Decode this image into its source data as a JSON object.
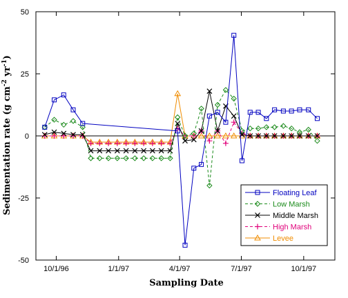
{
  "chart_data": {
    "type": "line",
    "xlabel": "Sampling Date",
    "ylabel": "Sedimentation rate (g cm",
    "ylabel_sup1": "-2",
    "ylabel_mid": " yr",
    "ylabel_sup2": "-1",
    "ylabel_end": ")",
    "ylim": [
      -50,
      50
    ],
    "yticks": [
      50,
      25,
      0,
      -25,
      -50
    ],
    "xlim": [
      "1996-09-01",
      "1997-11-16"
    ],
    "xticks": [
      {
        "date": "1996-10-01",
        "label": "10/1/96"
      },
      {
        "date": "1997-01-01",
        "label": "1/1/97"
      },
      {
        "date": "1997-04-01",
        "label": "4/1/97"
      },
      {
        "date": "1997-07-01",
        "label": "7/1/97"
      },
      {
        "date": "1997-10-01",
        "label": "10/1/97"
      }
    ],
    "grid": false,
    "zero_line": true,
    "legend_position": "bottom-right",
    "series": [
      {
        "name": "Floating Leaf",
        "color": "#0000c0",
        "dash": "none",
        "marker": "square",
        "points": [
          [
            "1996-09-14",
            3.5
          ],
          [
            "1996-09-28",
            14.5
          ],
          [
            "1996-10-12",
            16.5
          ],
          [
            "1996-10-26",
            10.5
          ],
          [
            "1996-11-09",
            5
          ],
          [
            "1997-03-29",
            2
          ],
          [
            "1997-04-09",
            -44
          ],
          [
            "1997-04-22",
            -13
          ],
          [
            "1997-05-03",
            -11.5
          ],
          [
            "1997-05-15",
            8
          ],
          [
            "1997-05-27",
            9.5
          ],
          [
            "1997-06-08",
            5.5
          ],
          [
            "1997-06-20",
            40.5
          ],
          [
            "1997-07-02",
            -10
          ],
          [
            "1997-07-14",
            9.5
          ],
          [
            "1997-07-26",
            9.5
          ],
          [
            "1997-08-07",
            7
          ],
          [
            "1997-08-19",
            10.5
          ],
          [
            "1997-09-01",
            10
          ],
          [
            "1997-09-13",
            10
          ],
          [
            "1997-09-25",
            10.5
          ],
          [
            "1997-10-08",
            10.5
          ],
          [
            "1997-10-21",
            7
          ]
        ]
      },
      {
        "name": "Low Marsh",
        "color": "#1a8a1a",
        "dash": "4,3",
        "marker": "diamond",
        "points": [
          [
            "1996-09-14",
            3.5
          ],
          [
            "1996-09-28",
            6.5
          ],
          [
            "1996-10-12",
            4.5
          ],
          [
            "1996-10-26",
            6
          ],
          [
            "1996-11-09",
            3.5
          ],
          [
            "1996-11-21",
            -9
          ],
          [
            "1996-12-04",
            -9
          ],
          [
            "1996-12-17",
            -9
          ],
          [
            "1996-12-30",
            -9
          ],
          [
            "1997-01-12",
            -9
          ],
          [
            "1997-01-25",
            -9
          ],
          [
            "1997-02-07",
            -9
          ],
          [
            "1997-02-20",
            -9
          ],
          [
            "1997-03-05",
            -9
          ],
          [
            "1997-03-18",
            -9
          ],
          [
            "1997-03-29",
            7.5
          ],
          [
            "1997-04-09",
            0
          ],
          [
            "1997-04-22",
            1
          ],
          [
            "1997-05-03",
            11
          ],
          [
            "1997-05-15",
            -20
          ],
          [
            "1997-05-27",
            12.5
          ],
          [
            "1997-06-08",
            18.5
          ],
          [
            "1997-06-20",
            15
          ],
          [
            "1997-07-02",
            2
          ],
          [
            "1997-07-14",
            3
          ],
          [
            "1997-07-26",
            3
          ],
          [
            "1997-08-07",
            3.5
          ],
          [
            "1997-08-19",
            3.5
          ],
          [
            "1997-09-01",
            4
          ],
          [
            "1997-09-13",
            3
          ],
          [
            "1997-09-25",
            1.5
          ],
          [
            "1997-10-08",
            2.5
          ],
          [
            "1997-10-21",
            -2
          ]
        ]
      },
      {
        "name": "Middle Marsh",
        "color": "#000000",
        "dash": "none",
        "marker": "x",
        "points": [
          [
            "1996-09-14",
            0.5
          ],
          [
            "1996-09-28",
            1.5
          ],
          [
            "1996-10-12",
            1
          ],
          [
            "1996-10-26",
            0.5
          ],
          [
            "1996-11-09",
            0.5
          ],
          [
            "1996-11-21",
            -6
          ],
          [
            "1996-12-04",
            -6
          ],
          [
            "1996-12-17",
            -6
          ],
          [
            "1996-12-30",
            -6
          ],
          [
            "1997-01-12",
            -6
          ],
          [
            "1997-01-25",
            -6
          ],
          [
            "1997-02-07",
            -6
          ],
          [
            "1997-02-20",
            -6
          ],
          [
            "1997-03-05",
            -6
          ],
          [
            "1997-03-18",
            -6
          ],
          [
            "1997-03-29",
            5
          ],
          [
            "1997-04-09",
            -2
          ],
          [
            "1997-04-22",
            -1.5
          ],
          [
            "1997-05-03",
            2
          ],
          [
            "1997-05-15",
            18
          ],
          [
            "1997-05-27",
            2
          ],
          [
            "1997-06-08",
            12
          ],
          [
            "1997-06-20",
            8
          ],
          [
            "1997-07-02",
            0.5
          ],
          [
            "1997-07-14",
            0
          ],
          [
            "1997-07-26",
            0
          ],
          [
            "1997-08-07",
            0
          ],
          [
            "1997-08-19",
            0
          ],
          [
            "1997-09-01",
            0
          ],
          [
            "1997-09-13",
            0
          ],
          [
            "1997-09-25",
            0
          ],
          [
            "1997-10-08",
            0
          ],
          [
            "1997-10-21",
            0
          ]
        ]
      },
      {
        "name": "High Marsh",
        "color": "#e0007a",
        "dash": "4,3",
        "marker": "plus",
        "points": [
          [
            "1996-09-14",
            0
          ],
          [
            "1996-09-28",
            0
          ],
          [
            "1996-10-12",
            0
          ],
          [
            "1996-10-26",
            0
          ],
          [
            "1996-11-09",
            0
          ],
          [
            "1996-11-21",
            -3
          ],
          [
            "1996-12-04",
            -3
          ],
          [
            "1996-12-17",
            -3
          ],
          [
            "1996-12-30",
            -3
          ],
          [
            "1997-01-12",
            -3
          ],
          [
            "1997-01-25",
            -3
          ],
          [
            "1997-02-07",
            -3
          ],
          [
            "1997-02-20",
            -3
          ],
          [
            "1997-03-05",
            -3
          ],
          [
            "1997-03-18",
            -3
          ],
          [
            "1997-03-29",
            3
          ],
          [
            "1997-04-09",
            0
          ],
          [
            "1997-04-22",
            0
          ],
          [
            "1997-05-03",
            2
          ],
          [
            "1997-05-15",
            -2
          ],
          [
            "1997-05-27",
            2
          ],
          [
            "1997-06-08",
            -3
          ],
          [
            "1997-06-20",
            5.5
          ],
          [
            "1997-07-02",
            1
          ],
          [
            "1997-07-14",
            0
          ],
          [
            "1997-07-26",
            0
          ],
          [
            "1997-08-07",
            0
          ],
          [
            "1997-08-19",
            0
          ],
          [
            "1997-09-01",
            0
          ],
          [
            "1997-09-13",
            0
          ],
          [
            "1997-09-25",
            0
          ],
          [
            "1997-10-08",
            0
          ],
          [
            "1997-10-21",
            0
          ]
        ]
      },
      {
        "name": "Levee",
        "color": "#f08c00",
        "dash": "none",
        "marker": "triangle",
        "points": [
          [
            "1996-09-14",
            0
          ],
          [
            "1996-09-28",
            0
          ],
          [
            "1996-10-12",
            0
          ],
          [
            "1996-10-26",
            0
          ],
          [
            "1996-11-09",
            0
          ],
          [
            "1996-11-21",
            -2.5
          ],
          [
            "1996-12-04",
            -2.5
          ],
          [
            "1996-12-17",
            -2.5
          ],
          [
            "1996-12-30",
            -2.5
          ],
          [
            "1997-01-12",
            -2.5
          ],
          [
            "1997-01-25",
            -2.5
          ],
          [
            "1997-02-07",
            -2.5
          ],
          [
            "1997-02-20",
            -2.5
          ],
          [
            "1997-03-05",
            -2.5
          ],
          [
            "1997-03-18",
            -2.5
          ],
          [
            "1997-03-29",
            17
          ],
          [
            "1997-04-09",
            0
          ],
          [
            "1997-04-22",
            0
          ],
          [
            "1997-05-03",
            0
          ],
          [
            "1997-05-15",
            0
          ],
          [
            "1997-05-27",
            0
          ],
          [
            "1997-06-08",
            0
          ],
          [
            "1997-06-20",
            0
          ],
          [
            "1997-07-02",
            0
          ],
          [
            "1997-07-14",
            0
          ],
          [
            "1997-07-26",
            0
          ],
          [
            "1997-08-07",
            0
          ],
          [
            "1997-08-19",
            0
          ],
          [
            "1997-09-01",
            0
          ],
          [
            "1997-09-13",
            0
          ],
          [
            "1997-09-25",
            0
          ],
          [
            "1997-10-08",
            0
          ],
          [
            "1997-10-21",
            0
          ]
        ]
      }
    ]
  }
}
